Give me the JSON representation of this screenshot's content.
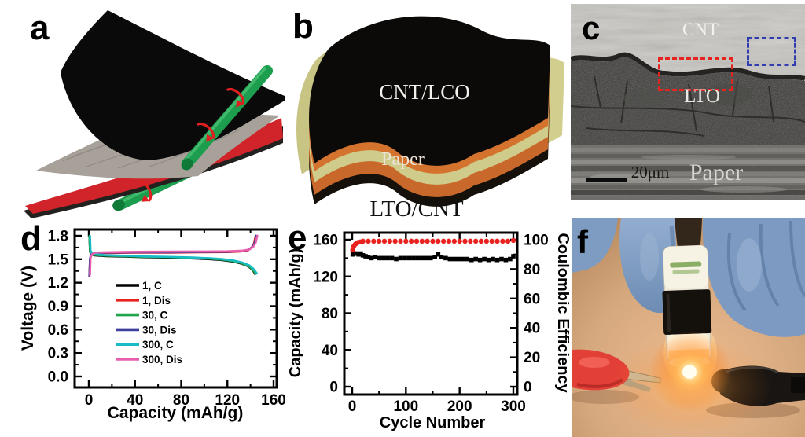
{
  "panels": {
    "a": {
      "label": "a"
    },
    "b": {
      "label": "b",
      "layers": {
        "top": "CNT/LCO",
        "paper": "Paper",
        "bottom": "LTO/CNT"
      }
    },
    "c": {
      "label": "c",
      "annotations": {
        "cnt": "CNT",
        "lto": "LTO",
        "paper": "Paper",
        "scale_bar": "20μm"
      }
    },
    "d": {
      "label": "d"
    },
    "e": {
      "label": "e"
    },
    "f": {
      "label": "f"
    }
  },
  "colors": {
    "roller_green": "#1d9e4e",
    "sheet_red": "#d1232a",
    "sheet_gray": "#a8a19a",
    "layer_orange": "#cd6e2d",
    "layer_khaki": "#cfcb8a",
    "roi_red_box": "#e8231f",
    "roi_blue_box": "#2f3db0",
    "glove_blue": "#7d9bc2",
    "led_glow": "#ffb654"
  },
  "chart_data": [
    {
      "panel": "d",
      "type": "line",
      "title": "",
      "xlabel": "Capacity (mAh/g)",
      "ylabel": "Voltage (V)",
      "xlim": [
        0,
        160
      ],
      "ylim": [
        0.0,
        1.8
      ],
      "xticks": [
        0,
        40,
        80,
        120,
        160
      ],
      "xtick_labels": [
        "0",
        "40",
        "80",
        "120",
        "160"
      ],
      "yticks": [
        0.0,
        0.3,
        0.6,
        0.9,
        1.2,
        1.5,
        1.8
      ],
      "ytick_labels": [
        "0.0",
        "0.3",
        "0.6",
        "0.9",
        "1.2",
        "1.5",
        "1.8"
      ],
      "grid": false,
      "legend_position": "inside-center-left",
      "series": [
        {
          "name": "1, C",
          "color": "#000000",
          "points": [
            [
              0.5,
              1.8
            ],
            [
              1,
              1.6
            ],
            [
              2,
              1.565
            ],
            [
              5,
              1.55
            ],
            [
              15,
              1.54
            ],
            [
              30,
              1.535
            ],
            [
              50,
              1.525
            ],
            [
              70,
              1.52
            ],
            [
              90,
              1.51
            ],
            [
              105,
              1.5
            ],
            [
              115,
              1.49
            ],
            [
              125,
              1.47
            ],
            [
              132,
              1.445
            ],
            [
              138,
              1.41
            ],
            [
              142,
              1.36
            ],
            [
              144,
              1.31
            ]
          ]
        },
        {
          "name": "1, Dis",
          "color": "#e8231f",
          "points": [
            [
              0.5,
              1.28
            ],
            [
              1,
              1.5
            ],
            [
              2,
              1.555
            ],
            [
              5,
              1.575
            ],
            [
              15,
              1.58
            ],
            [
              40,
              1.585
            ],
            [
              70,
              1.585
            ],
            [
              100,
              1.59
            ],
            [
              120,
              1.592
            ],
            [
              132,
              1.6
            ],
            [
              138,
              1.615
            ],
            [
              141,
              1.65
            ],
            [
              143,
              1.7
            ],
            [
              144.5,
              1.8
            ]
          ]
        },
        {
          "name": "30, C",
          "color": "#21a64f",
          "points": [
            [
              0.5,
              1.8
            ],
            [
              1,
              1.605
            ],
            [
              2,
              1.57
            ],
            [
              5,
              1.556
            ],
            [
              15,
              1.546
            ],
            [
              30,
              1.54
            ],
            [
              50,
              1.53
            ],
            [
              70,
              1.526
            ],
            [
              90,
              1.516
            ],
            [
              105,
              1.506
            ],
            [
              115,
              1.496
            ],
            [
              125,
              1.476
            ],
            [
              132,
              1.45
            ],
            [
              138,
              1.415
            ],
            [
              142,
              1.365
            ],
            [
              144.5,
              1.315
            ]
          ]
        },
        {
          "name": "30, Dis",
          "color": "#3c3f9c",
          "points": [
            [
              0.5,
              1.29
            ],
            [
              1,
              1.51
            ],
            [
              2,
              1.562
            ],
            [
              5,
              1.58
            ],
            [
              15,
              1.585
            ],
            [
              40,
              1.59
            ],
            [
              70,
              1.59
            ],
            [
              100,
              1.594
            ],
            [
              120,
              1.597
            ],
            [
              132,
              1.605
            ],
            [
              138,
              1.62
            ],
            [
              141.5,
              1.655
            ],
            [
              143.5,
              1.705
            ],
            [
              145,
              1.8
            ]
          ]
        },
        {
          "name": "300, C",
          "color": "#19bcc6",
          "points": [
            [
              1,
              1.8
            ],
            [
              1.5,
              1.61
            ],
            [
              3,
              1.575
            ],
            [
              6,
              1.562
            ],
            [
              15,
              1.552
            ],
            [
              30,
              1.546
            ],
            [
              50,
              1.536
            ],
            [
              70,
              1.53
            ],
            [
              90,
              1.522
            ],
            [
              105,
              1.512
            ],
            [
              115,
              1.502
            ],
            [
              126,
              1.482
            ],
            [
              133,
              1.458
            ],
            [
              139,
              1.422
            ],
            [
              143,
              1.372
            ],
            [
              145.5,
              1.318
            ]
          ]
        },
        {
          "name": "300, Dis",
          "color": "#e95fae",
          "points": [
            [
              1,
              1.3
            ],
            [
              1.5,
              1.52
            ],
            [
              3,
              1.568
            ],
            [
              6,
              1.586
            ],
            [
              15,
              1.59
            ],
            [
              40,
              1.596
            ],
            [
              70,
              1.598
            ],
            [
              100,
              1.6
            ],
            [
              120,
              1.602
            ],
            [
              133,
              1.61
            ],
            [
              139,
              1.625
            ],
            [
              142.5,
              1.66
            ],
            [
              144.5,
              1.71
            ],
            [
              146,
              1.8
            ]
          ]
        }
      ]
    },
    {
      "panel": "e",
      "type": "scatter",
      "title": "",
      "xlabel": "Cycle Number",
      "ylabel_left": "Capacity (mAh/g)",
      "ylabel_right": "Coulombic Efficiency",
      "xlim": [
        0,
        300
      ],
      "ylim_left": [
        0,
        160
      ],
      "ylim_right": [
        0,
        100
      ],
      "xticks": [
        0,
        100,
        200,
        300
      ],
      "yticks_left": [
        0,
        40,
        80,
        120,
        160
      ],
      "yticks_right": [
        0,
        20,
        40,
        60,
        80,
        100
      ],
      "grid": false,
      "series": [
        {
          "name": "Capacity",
          "axis": "left",
          "marker": "square",
          "color": "#000000",
          "points": [
            [
              1,
              144
            ],
            [
              4,
              145
            ],
            [
              8,
              145
            ],
            [
              12,
              144
            ],
            [
              16,
              145
            ],
            [
              20,
              143
            ],
            [
              25,
              142
            ],
            [
              30,
              141
            ],
            [
              36,
              140
            ],
            [
              42,
              141
            ],
            [
              50,
              140
            ],
            [
              58,
              140
            ],
            [
              66,
              140
            ],
            [
              74,
              140
            ],
            [
              82,
              139
            ],
            [
              90,
              140
            ],
            [
              98,
              140
            ],
            [
              106,
              140
            ],
            [
              114,
              140
            ],
            [
              122,
              140
            ],
            [
              130,
              140
            ],
            [
              138,
              140
            ],
            [
              146,
              140
            ],
            [
              154,
              141
            ],
            [
              160,
              144
            ],
            [
              166,
              141
            ],
            [
              174,
              140
            ],
            [
              182,
              139
            ],
            [
              190,
              139
            ],
            [
              198,
              139
            ],
            [
              206,
              139
            ],
            [
              214,
              139
            ],
            [
              222,
              138
            ],
            [
              230,
              139
            ],
            [
              238,
              138
            ],
            [
              246,
              139
            ],
            [
              254,
              138
            ],
            [
              262,
              139
            ],
            [
              270,
              138
            ],
            [
              278,
              139
            ],
            [
              286,
              138
            ],
            [
              294,
              139
            ],
            [
              300,
              142
            ]
          ]
        },
        {
          "name": "Coulombic Efficiency",
          "axis": "right",
          "marker": "circle",
          "color": "#e8231f",
          "points": [
            [
              1,
              93
            ],
            [
              3,
              95.5
            ],
            [
              6,
              97
            ],
            [
              10,
              98
            ],
            [
              15,
              98.5
            ],
            [
              20,
              99
            ],
            [
              30,
              99
            ],
            [
              40,
              99
            ],
            [
              50,
              99
            ],
            [
              60,
              99
            ],
            [
              70,
              99
            ],
            [
              80,
              99
            ],
            [
              90,
              99
            ],
            [
              100,
              99
            ],
            [
              110,
              99
            ],
            [
              120,
              99
            ],
            [
              130,
              99
            ],
            [
              140,
              99
            ],
            [
              150,
              99
            ],
            [
              160,
              99
            ],
            [
              170,
              99
            ],
            [
              180,
              99
            ],
            [
              190,
              99
            ],
            [
              200,
              99
            ],
            [
              210,
              99
            ],
            [
              220,
              99
            ],
            [
              230,
              99
            ],
            [
              240,
              99
            ],
            [
              250,
              99
            ],
            [
              260,
              99
            ],
            [
              270,
              99
            ],
            [
              280,
              99
            ],
            [
              290,
              99
            ],
            [
              300,
              99.5
            ]
          ]
        }
      ]
    }
  ]
}
